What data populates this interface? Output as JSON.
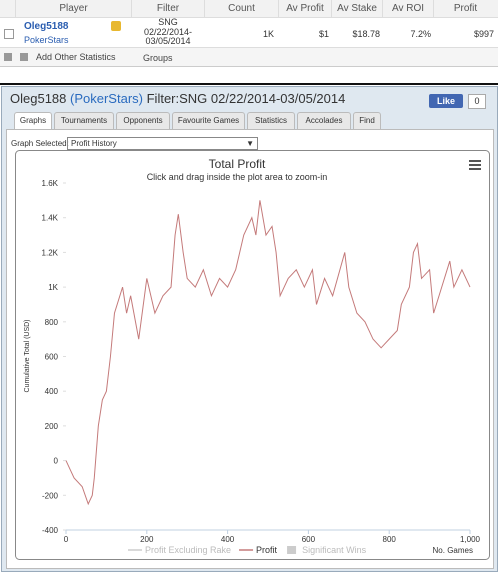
{
  "table": {
    "headers": [
      "Player",
      "Filter",
      "Count",
      "Av Profit",
      "Av Stake",
      "Av ROI",
      "Profit"
    ],
    "rows": [
      {
        "player": "Oleg5188",
        "site": "PokerStars",
        "filter_lines": [
          "SNG",
          "02/22/2014-",
          "03/05/2014"
        ],
        "count": "1K",
        "av_profit": "$1",
        "av_stake": "$18.78",
        "av_roi": "7.2%",
        "profit": "$997"
      }
    ]
  },
  "toolbar": {
    "add_stats": "Add Other Statistics",
    "groups": "Groups"
  },
  "panel": {
    "player": "Oleg5188",
    "site": "(PokerStars)",
    "filter": "Filter:SNG 02/22/2014-03/05/2014",
    "like": "Like",
    "like_count": "0",
    "tabs": [
      "Graphs",
      "Tournaments",
      "Opponents",
      "Favourite Games",
      "Statistics",
      "Accolades",
      "Find"
    ],
    "graph_selected_label": "Graph Selected:",
    "graph_selected": "Profit History"
  },
  "chart_data": {
    "type": "line",
    "title": "Total Profit",
    "subtitle": "Click and drag inside the plot area to zoom-in",
    "xlabel": "No. Games",
    "ylabel": "Cumulative Total (USD)",
    "x": [
      0,
      10,
      20,
      40,
      55,
      65,
      70,
      80,
      90,
      100,
      110,
      120,
      140,
      150,
      160,
      180,
      200,
      220,
      240,
      260,
      270,
      278,
      290,
      300,
      320,
      340,
      360,
      380,
      400,
      420,
      440,
      460,
      470,
      480,
      495,
      510,
      520,
      530,
      550,
      570,
      590,
      610,
      620,
      640,
      660,
      690,
      700,
      720,
      740,
      760,
      780,
      800,
      820,
      830,
      850,
      860,
      870,
      880,
      900,
      910,
      930,
      950,
      960,
      970,
      980,
      1000
    ],
    "series": [
      {
        "name": "Profit",
        "color": "#c47a7a",
        "values": [
          0,
          -50,
          -100,
          -150,
          -250,
          -200,
          -100,
          200,
          350,
          400,
          600,
          850,
          1000,
          850,
          950,
          700,
          1050,
          850,
          950,
          1000,
          1300,
          1420,
          1200,
          1050,
          1000,
          1100,
          950,
          1050,
          1000,
          1100,
          1300,
          1400,
          1300,
          1500,
          1300,
          1350,
          1200,
          950,
          1050,
          1100,
          1000,
          1100,
          900,
          1050,
          950,
          1200,
          1000,
          850,
          800,
          700,
          650,
          700,
          750,
          900,
          1000,
          1200,
          1250,
          1050,
          1100,
          850,
          1000,
          1150,
          1000,
          1050,
          1100,
          1000
        ]
      }
    ],
    "hidden_series": [
      {
        "name": "Profit Excluding Rake"
      },
      {
        "name": "Significant Wins"
      }
    ],
    "xlim": [
      0,
      1000
    ],
    "xticks": [
      0,
      200,
      400,
      600,
      800,
      {
        "value": 1000,
        "label": "1,000"
      }
    ],
    "ylim": [
      -400,
      1600
    ],
    "yticks": [
      -400,
      -200,
      0,
      200,
      400,
      600,
      800,
      {
        "value": 1000,
        "label": "1K"
      },
      {
        "value": 1200,
        "label": "1.2K"
      },
      {
        "value": 1400,
        "label": "1.4K"
      },
      {
        "value": 1600,
        "label": "1.6K"
      }
    ],
    "grid": false
  }
}
